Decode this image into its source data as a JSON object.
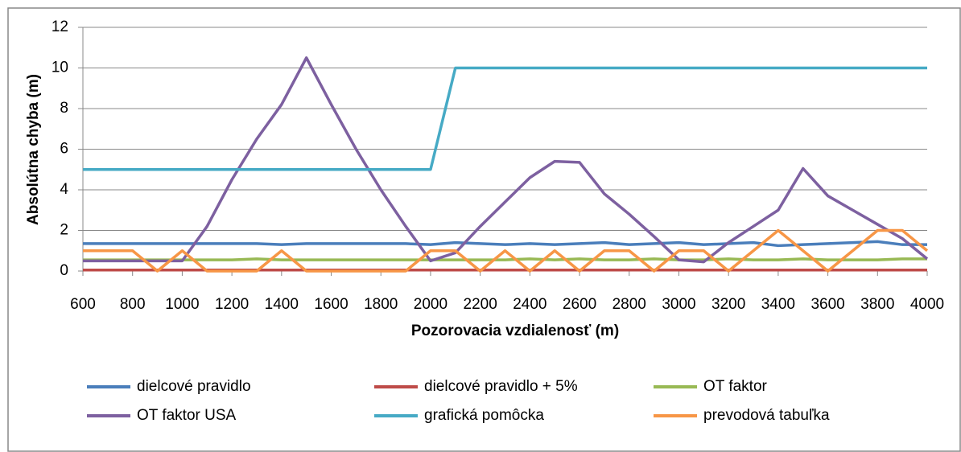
{
  "chart_data": {
    "type": "line",
    "x_label": "Pozorovacia vzdialenosť (m)",
    "y_label": "Absolútna chyba (m)",
    "x": [
      600,
      700,
      800,
      900,
      1000,
      1100,
      1200,
      1300,
      1400,
      1500,
      1600,
      1700,
      1800,
      1900,
      2000,
      2100,
      2200,
      2300,
      2400,
      2500,
      2600,
      2700,
      2800,
      2900,
      3000,
      3100,
      3200,
      3300,
      3400,
      3500,
      3600,
      3700,
      3800,
      3900,
      4000
    ],
    "xlim": [
      600,
      4000
    ],
    "xticks": [
      600,
      800,
      1000,
      1200,
      1400,
      1600,
      1800,
      2000,
      2200,
      2400,
      2600,
      2800,
      3000,
      3200,
      3400,
      3600,
      3800,
      4000
    ],
    "ylim": [
      0,
      12
    ],
    "yticks": [
      0,
      2,
      4,
      6,
      8,
      10,
      12
    ],
    "grid": true,
    "legend": "bottom",
    "series": [
      {
        "name": "dielcové pravidlo",
        "color": "#4a7ebb",
        "values": [
          1.35,
          1.35,
          1.35,
          1.35,
          1.35,
          1.35,
          1.35,
          1.35,
          1.3,
          1.35,
          1.35,
          1.35,
          1.35,
          1.35,
          1.3,
          1.4,
          1.35,
          1.3,
          1.35,
          1.3,
          1.35,
          1.4,
          1.3,
          1.35,
          1.4,
          1.3,
          1.35,
          1.4,
          1.25,
          1.3,
          1.35,
          1.4,
          1.45,
          1.3,
          1.3
        ]
      },
      {
        "name": "dielcové pravidlo + 5%",
        "color": "#be4b48",
        "values": [
          0.05,
          0.05,
          0.05,
          0.05,
          0.05,
          0.05,
          0.05,
          0.05,
          0.05,
          0.05,
          0.05,
          0.05,
          0.05,
          0.05,
          0.05,
          0.05,
          0.05,
          0.05,
          0.05,
          0.05,
          0.05,
          0.05,
          0.05,
          0.05,
          0.05,
          0.05,
          0.05,
          0.05,
          0.05,
          0.05,
          0.05,
          0.05,
          0.05,
          0.05,
          0.05
        ]
      },
      {
        "name": "OT faktor",
        "color": "#98b954",
        "values": [
          0.55,
          0.55,
          0.55,
          0.55,
          0.55,
          0.55,
          0.55,
          0.6,
          0.55,
          0.55,
          0.55,
          0.55,
          0.55,
          0.55,
          0.55,
          0.55,
          0.55,
          0.55,
          0.6,
          0.55,
          0.6,
          0.55,
          0.55,
          0.6,
          0.55,
          0.55,
          0.6,
          0.55,
          0.55,
          0.6,
          0.55,
          0.55,
          0.55,
          0.6,
          0.6
        ]
      },
      {
        "name": "OT faktor USA",
        "color": "#7d60a0",
        "values": [
          0.5,
          0.5,
          0.5,
          0.5,
          0.5,
          2.2,
          4.5,
          6.5,
          8.2,
          10.5,
          8.2,
          6,
          4,
          2.2,
          0.5,
          0.9,
          2.2,
          3.4,
          4.6,
          5.4,
          5.35,
          3.8,
          2.8,
          1.7,
          0.55,
          0.45,
          1.4,
          2.2,
          3,
          5.05,
          3.7,
          3,
          2.3,
          1.6,
          0.6
        ]
      },
      {
        "name": "grafická pomôcka",
        "color": "#46aac5",
        "values": [
          5,
          5,
          5,
          5,
          5,
          5,
          5,
          5,
          5,
          5,
          5,
          5,
          5,
          5,
          5,
          10,
          10,
          10,
          10,
          10,
          10,
          10,
          10,
          10,
          10,
          10,
          10,
          10,
          10,
          10,
          10,
          10,
          10,
          10,
          10
        ]
      },
      {
        "name": "prevodová tabuľka",
        "color": "#f79646",
        "values": [
          1,
          1,
          1,
          0,
          1,
          0,
          0,
          0,
          1,
          0,
          0,
          0,
          0,
          0,
          1,
          1,
          0,
          1,
          0,
          1,
          0,
          1,
          1,
          0,
          1,
          1,
          0,
          1,
          2,
          1,
          0,
          1,
          2,
          2,
          1
        ]
      }
    ]
  }
}
